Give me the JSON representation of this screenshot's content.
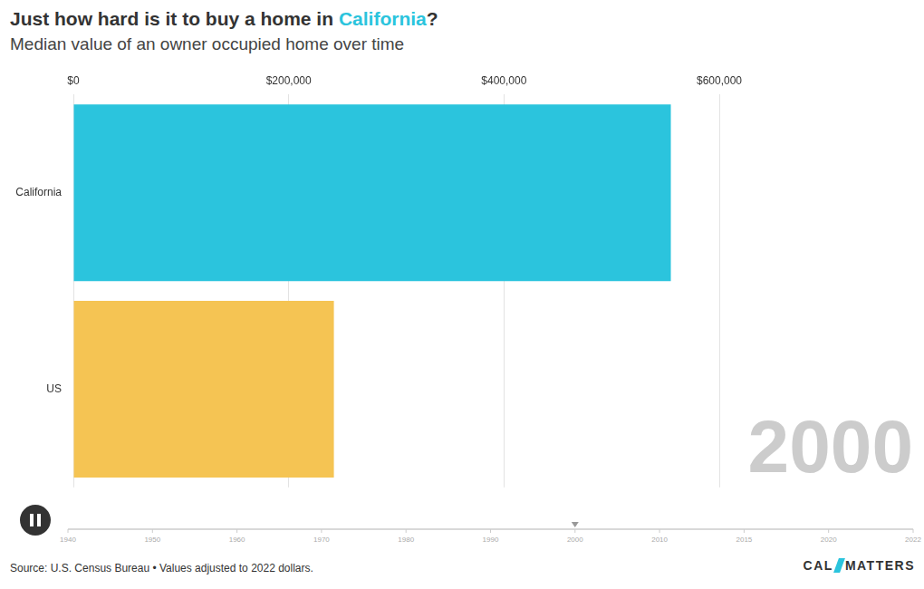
{
  "source": "Source: U.S. Census Bureau • Values adjusted to 2022 dollars.",
  "logo": [
    "CAL",
    "MATTERS"
  ],
  "timeline": [
    1940,
    1950,
    1960,
    1970,
    1980,
    1990,
    2000,
    2010,
    2015,
    2020,
    2022
  ],
  "chart_data": {
    "type": "bar",
    "orientation": "horizontal",
    "title": "Just how hard is it to buy a home in California?",
    "subtitle": "Median value of an owner occupied home over time",
    "annotation": "2000",
    "categories": [
      "California",
      "US"
    ],
    "values": [
      555000,
      242000
    ],
    "colors": [
      "#2BC4DD",
      "#F5C453"
    ],
    "xlim": [
      0,
      600000
    ],
    "xticks": [
      {
        "value": 0,
        "label": "$0"
      },
      {
        "value": 200000,
        "label": "$200,000"
      },
      {
        "value": 400000,
        "label": "$400,000"
      },
      {
        "value": 600000,
        "label": "$600,000"
      }
    ],
    "grid": true
  }
}
